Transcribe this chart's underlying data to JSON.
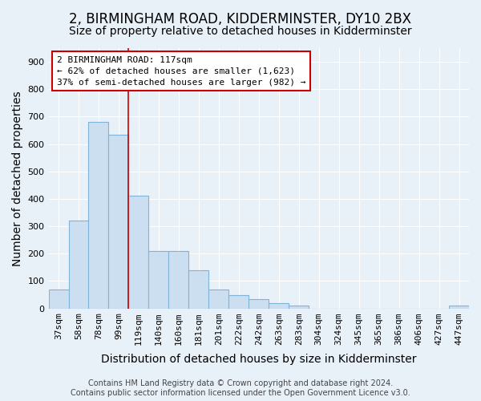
{
  "title": "2, BIRMINGHAM ROAD, KIDDERMINSTER, DY10 2BX",
  "subtitle": "Size of property relative to detached houses in Kidderminster",
  "xlabel": "Distribution of detached houses by size in Kidderminster",
  "ylabel": "Number of detached properties",
  "categories": [
    "37sqm",
    "58sqm",
    "78sqm",
    "99sqm",
    "119sqm",
    "140sqm",
    "160sqm",
    "181sqm",
    "201sqm",
    "222sqm",
    "242sqm",
    "263sqm",
    "283sqm",
    "304sqm",
    "324sqm",
    "345sqm",
    "365sqm",
    "386sqm",
    "406sqm",
    "427sqm",
    "447sqm"
  ],
  "values": [
    70,
    320,
    680,
    635,
    410,
    210,
    210,
    140,
    68,
    48,
    35,
    20,
    10,
    0,
    0,
    0,
    0,
    0,
    0,
    0,
    10
  ],
  "bar_color": "#ccdff0",
  "bar_edge_color": "#7fb4d8",
  "bar_edge_width": 0.8,
  "redline_x": 3.5,
  "annotation_line1": "2 BIRMINGHAM ROAD: 117sqm",
  "annotation_line2": "← 62% of detached houses are smaller (1,623)",
  "annotation_line3": "37% of semi-detached houses are larger (982) →",
  "annotation_box_color": "#ffffff",
  "annotation_box_edge_color": "#cc0000",
  "redline_color": "#cc0000",
  "ylim": [
    0,
    950
  ],
  "yticks": [
    0,
    100,
    200,
    300,
    400,
    500,
    600,
    700,
    800,
    900
  ],
  "footer_line1": "Contains HM Land Registry data © Crown copyright and database right 2024.",
  "footer_line2": "Contains public sector information licensed under the Open Government Licence v3.0.",
  "background_color": "#e8f0f8",
  "plot_background_color": "#e8f0f8",
  "grid_color": "#ffffff",
  "title_fontsize": 12,
  "subtitle_fontsize": 10,
  "axis_label_fontsize": 10,
  "tick_fontsize": 8,
  "annotation_fontsize": 8,
  "footer_fontsize": 7
}
